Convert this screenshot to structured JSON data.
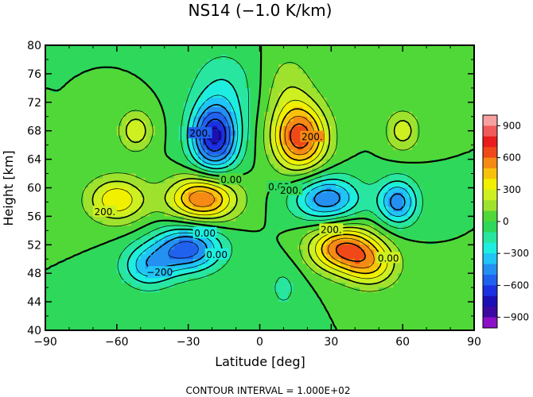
{
  "chart_data": {
    "type": "heatmap",
    "title": "NS14 (−1.0 K/km)",
    "xlabel": "Latitude [deg]",
    "ylabel": "Height [km]",
    "xlim": [
      -90,
      90
    ],
    "ylim": [
      40,
      80
    ],
    "x_ticks": [
      -90,
      -60,
      -30,
      0,
      30,
      60,
      90
    ],
    "x_tick_labels": [
      "−90",
      "−60",
      "−30",
      "0",
      "30",
      "60",
      "90"
    ],
    "y_ticks": [
      40,
      44,
      48,
      52,
      56,
      60,
      64,
      68,
      72,
      76,
      80
    ],
    "y_tick_labels": [
      "40",
      "44",
      "48",
      "52",
      "56",
      "60",
      "64",
      "68",
      "72",
      "76",
      "80"
    ],
    "footer": "CONTOUR INTERVAL = 1.000E+02",
    "contour_interval": 100,
    "colorbar": {
      "tick_values": [
        900,
        600,
        300,
        0,
        -300,
        -600,
        -900
      ],
      "tick_labels": [
        "900",
        "600",
        "300",
        "0",
        "−300",
        "−600",
        "−900"
      ],
      "levels": [
        {
          "value": 950,
          "color": "#f6a0a0"
        },
        {
          "value": 850,
          "color": "#f05a5a"
        },
        {
          "value": 750,
          "color": "#e81c1c"
        },
        {
          "value": 650,
          "color": "#f04818"
        },
        {
          "value": 550,
          "color": "#f58a14"
        },
        {
          "value": 450,
          "color": "#f8c20c"
        },
        {
          "value": 350,
          "color": "#f0f000"
        },
        {
          "value": 250,
          "color": "#cef020"
        },
        {
          "value": 150,
          "color": "#9ee22e"
        },
        {
          "value": 50,
          "color": "#50d838"
        },
        {
          "value": -50,
          "color": "#2ed85a"
        },
        {
          "value": -150,
          "color": "#28e6a0"
        },
        {
          "value": -250,
          "color": "#1eeee0"
        },
        {
          "value": -350,
          "color": "#20c4f6"
        },
        {
          "value": -450,
          "color": "#2490f2"
        },
        {
          "value": -550,
          "color": "#2062ee"
        },
        {
          "value": -650,
          "color": "#1a32e0"
        },
        {
          "value": -750,
          "color": "#1a10b4"
        },
        {
          "value": -850,
          "color": "#3c0aa0"
        },
        {
          "value": -950,
          "color": "#8c10c8"
        }
      ]
    },
    "contour_labels": [
      {
        "text": "200.",
        "x": -25,
        "y": 67.5
      },
      {
        "text": "200.",
        "x": 22,
        "y": 67
      },
      {
        "text": "0.00",
        "x": -12,
        "y": 61
      },
      {
        "text": "0.00",
        "x": 8,
        "y": 60
      },
      {
        "text": "200.",
        "x": 13,
        "y": 59.5
      },
      {
        "text": "200.",
        "x": -65,
        "y": 56.5
      },
      {
        "text": "200.",
        "x": 30,
        "y": 54
      },
      {
        "text": "0.00",
        "x": -23,
        "y": 53.5
      },
      {
        "text": "0.00",
        "x": -18,
        "y": 50.5
      },
      {
        "text": "0.00",
        "x": 54,
        "y": 50
      },
      {
        "text": "−200",
        "x": -42,
        "y": 48
      }
    ],
    "features": [
      {
        "x": -19,
        "y": 67,
        "sx": 7,
        "sy": 3.3,
        "amp": -700
      },
      {
        "x": 17,
        "y": 67,
        "sx": 8,
        "sy": 3.3,
        "amp": 650
      },
      {
        "x": -24,
        "y": 58.5,
        "sx": 10,
        "sy": 2.3,
        "amp": 600
      },
      {
        "x": -60,
        "y": 58.3,
        "sx": 9,
        "sy": 2.3,
        "amp": 380
      },
      {
        "x": 28,
        "y": 58.5,
        "sx": 10,
        "sy": 2.3,
        "amp": -480
      },
      {
        "x": 58,
        "y": 58,
        "sx": 6,
        "sy": 2.3,
        "amp": -450
      },
      {
        "x": -30,
        "y": 51.5,
        "sx": 10,
        "sy": 2.3,
        "amp": -550
      },
      {
        "x": -47,
        "y": 49,
        "sx": 8,
        "sy": 2.2,
        "amp": -330
      },
      {
        "x": 35,
        "y": 51.5,
        "sx": 10,
        "sy": 2.3,
        "amp": 600
      },
      {
        "x": 47,
        "y": 49,
        "sx": 8,
        "sy": 2.2,
        "amp": 330
      },
      {
        "x": -15,
        "y": 74,
        "sx": 10,
        "sy": 4,
        "amp": -180
      },
      {
        "x": 12,
        "y": 74,
        "sx": 8,
        "sy": 4,
        "amp": 150
      },
      {
        "x": -52,
        "y": 68,
        "sx": 5,
        "sy": 2,
        "amp": 280
      },
      {
        "x": 60,
        "y": 68,
        "sx": 5,
        "sy": 2,
        "amp": 260
      },
      {
        "x": 10,
        "y": 46,
        "sx": 6,
        "sy": 3,
        "amp": -120
      }
    ]
  }
}
